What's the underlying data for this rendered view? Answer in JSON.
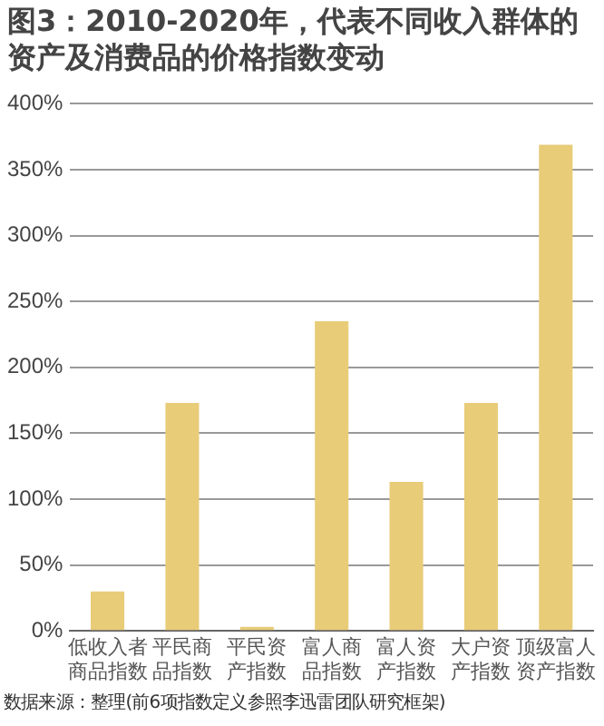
{
  "chart_data": {
    "type": "bar",
    "title": "图3：2010-2020年，代表不同收入群体的资产及消费品的价格指数变动",
    "categories": [
      "低收入者商品指数",
      "平民商品指数",
      "平民资产指数",
      "富人商品指数",
      "富人资产指数",
      "大户资产指数",
      "顶级富人资产指数"
    ],
    "values": [
      30,
      173,
      3,
      235,
      113,
      173,
      369
    ],
    "color": "#e8cc78",
    "ylim": [
      0,
      400
    ],
    "yticks": [
      {
        "value": 0,
        "label": "0%"
      },
      {
        "value": 50,
        "label": "50%"
      },
      {
        "value": 100,
        "label": "100%"
      },
      {
        "value": 150,
        "label": "150%"
      },
      {
        "value": 200,
        "label": "200%"
      },
      {
        "value": 250,
        "label": "250%"
      },
      {
        "value": 300,
        "label": "300%"
      },
      {
        "value": 350,
        "label": "350%"
      },
      {
        "value": 400,
        "label": "400%"
      }
    ],
    "grid": "y",
    "annotations": [
      "数据来源：整理(前6项指数定义参照李迅雷团队研究框架)"
    ]
  }
}
